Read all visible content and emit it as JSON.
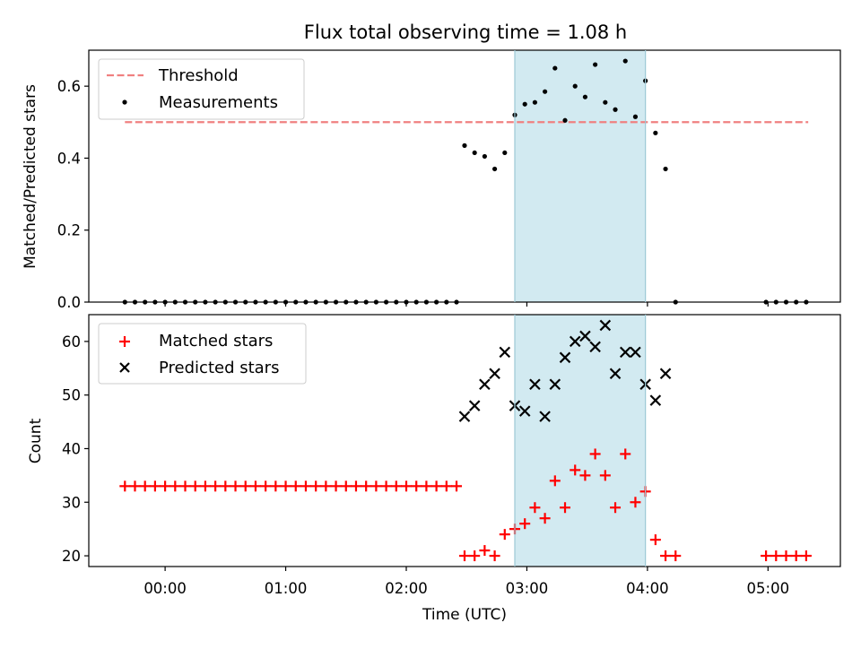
{
  "chart_data": [
    {
      "type": "scatter",
      "title": "Flux total observing time = 1.08 h",
      "xlabel": "",
      "ylabel": "Matched/Predicted stars",
      "xlim_hours": [
        -0.633,
        5.6
      ],
      "ylim": [
        0,
        0.7
      ],
      "yticks": [
        0.0,
        0.2,
        0.4,
        0.6
      ],
      "ytick_labels": [
        "0.0",
        "0.2",
        "0.4",
        "0.6"
      ],
      "legend_position": "top-left",
      "shaded_region": {
        "x0": "02:54",
        "x1": "03:59",
        "color": "#ADD8E6"
      },
      "series": [
        {
          "name": "Threshold",
          "style": "dashed-line",
          "color": "#F08080",
          "x": [
            "-00:20",
            "05:20"
          ],
          "y": [
            0.5,
            0.5
          ]
        },
        {
          "name": "Measurements",
          "style": "dot",
          "color": "#000000",
          "x": [
            "-00:20",
            "-00:15",
            "-00:10",
            "-00:05",
            "00:00",
            "00:05",
            "00:10",
            "00:15",
            "00:20",
            "00:25",
            "00:30",
            "00:35",
            "00:40",
            "00:45",
            "00:50",
            "00:55",
            "01:00",
            "01:05",
            "01:10",
            "01:15",
            "01:20",
            "01:25",
            "01:30",
            "01:35",
            "01:40",
            "01:45",
            "01:50",
            "01:55",
            "02:00",
            "02:05",
            "02:10",
            "02:15",
            "02:20",
            "02:25",
            "02:29",
            "02:34",
            "02:39",
            "02:44",
            "02:49",
            "02:54",
            "02:59",
            "03:04",
            "03:09",
            "03:14",
            "03:19",
            "03:24",
            "03:29",
            "03:34",
            "03:39",
            "03:44",
            "03:49",
            "03:54",
            "03:59",
            "04:04",
            "04:09",
            "04:14",
            "04:59",
            "05:04",
            "05:09",
            "05:14",
            "05:19"
          ],
          "y": [
            0,
            0,
            0,
            0,
            0,
            0,
            0,
            0,
            0,
            0,
            0,
            0,
            0,
            0,
            0,
            0,
            0,
            0,
            0,
            0,
            0,
            0,
            0,
            0,
            0,
            0,
            0,
            0,
            0,
            0,
            0,
            0,
            0,
            0,
            0.435,
            0.415,
            0.405,
            0.37,
            0.415,
            0.52,
            0.55,
            0.555,
            0.585,
            0.65,
            0.505,
            0.6,
            0.57,
            0.66,
            0.555,
            0.535,
            0.67,
            0.515,
            0.615,
            0.47,
            0.37,
            0,
            0,
            0,
            0,
            0,
            0
          ]
        }
      ]
    },
    {
      "type": "scatter",
      "title": "",
      "xlabel": "Time (UTC)",
      "ylabel": "Count",
      "xlim_hours": [
        -0.633,
        5.6
      ],
      "ylim": [
        18,
        65
      ],
      "xticks": [
        "00:00",
        "01:00",
        "02:00",
        "03:00",
        "04:00",
        "05:00"
      ],
      "yticks": [
        20,
        30,
        40,
        50,
        60
      ],
      "ytick_labels": [
        "20",
        "30",
        "40",
        "50",
        "60"
      ],
      "legend_position": "top-left",
      "shaded_region": {
        "x0": "02:54",
        "x1": "03:59",
        "color": "#ADD8E6"
      },
      "series": [
        {
          "name": "Matched stars",
          "style": "plus",
          "color": "#FF0000",
          "x": [
            "-00:20",
            "-00:15",
            "-00:10",
            "-00:05",
            "00:00",
            "00:05",
            "00:10",
            "00:15",
            "00:20",
            "00:25",
            "00:30",
            "00:35",
            "00:40",
            "00:45",
            "00:50",
            "00:55",
            "01:00",
            "01:05",
            "01:10",
            "01:15",
            "01:20",
            "01:25",
            "01:30",
            "01:35",
            "01:40",
            "01:45",
            "01:50",
            "01:55",
            "02:00",
            "02:05",
            "02:10",
            "02:15",
            "02:20",
            "02:25",
            "02:29",
            "02:34",
            "02:39",
            "02:44",
            "02:49",
            "02:54",
            "02:59",
            "03:04",
            "03:09",
            "03:14",
            "03:19",
            "03:24",
            "03:29",
            "03:34",
            "03:39",
            "03:44",
            "03:49",
            "03:54",
            "03:59",
            "04:04",
            "04:09",
            "04:14",
            "04:59",
            "05:04",
            "05:09",
            "05:14",
            "05:19"
          ],
          "y": [
            33,
            33,
            33,
            33,
            33,
            33,
            33,
            33,
            33,
            33,
            33,
            33,
            33,
            33,
            33,
            33,
            33,
            33,
            33,
            33,
            33,
            33,
            33,
            33,
            33,
            33,
            33,
            33,
            33,
            33,
            33,
            33,
            33,
            33,
            20,
            20,
            21,
            20,
            24,
            25,
            26,
            29,
            27,
            34,
            29,
            36,
            35,
            39,
            35,
            29,
            39,
            30,
            32,
            23,
            20,
            20,
            20,
            20,
            20,
            20,
            20
          ]
        },
        {
          "name": "Predicted stars",
          "style": "x",
          "color": "#000000",
          "x": [
            "02:29",
            "02:34",
            "02:39",
            "02:44",
            "02:49",
            "02:54",
            "02:59",
            "03:04",
            "03:09",
            "03:14",
            "03:19",
            "03:24",
            "03:29",
            "03:34",
            "03:39",
            "03:44",
            "03:49",
            "03:54",
            "03:59",
            "04:04",
            "04:09"
          ],
          "y": [
            46,
            48,
            52,
            54,
            58,
            48,
            47,
            52,
            46,
            52,
            57,
            60,
            61,
            59,
            63,
            54,
            58,
            58,
            52,
            49,
            54
          ]
        }
      ]
    }
  ]
}
